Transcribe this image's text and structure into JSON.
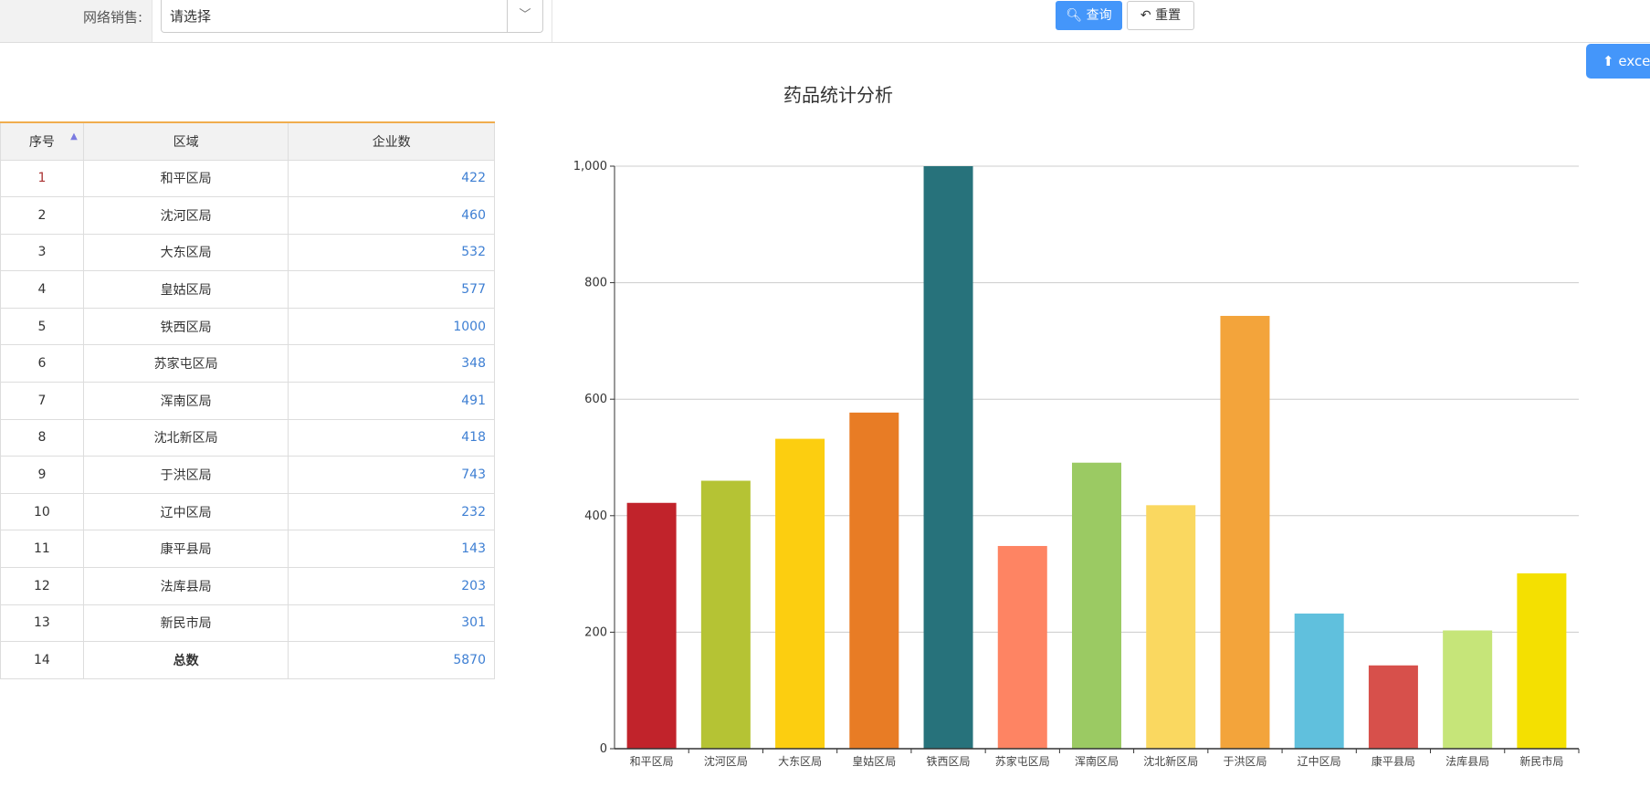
{
  "filter": {
    "label": "网络销售:",
    "select_value": "请选择"
  },
  "toolbar": {
    "query_label": "查询",
    "reset_label": "重置",
    "export_label": "excel"
  },
  "title": "药品统计分析",
  "table": {
    "headers": [
      "序号",
      "区域",
      "企业数"
    ],
    "rows": [
      [
        "1",
        "和平区局",
        "422"
      ],
      [
        "2",
        "沈河区局",
        "460"
      ],
      [
        "3",
        "大东区局",
        "532"
      ],
      [
        "4",
        "皇姑区局",
        "577"
      ],
      [
        "5",
        "铁西区局",
        "1000"
      ],
      [
        "6",
        "苏家屯区局",
        "348"
      ],
      [
        "7",
        "浑南区局",
        "491"
      ],
      [
        "8",
        "沈北新区局",
        "418"
      ],
      [
        "9",
        "于洪区局",
        "743"
      ],
      [
        "10",
        "辽中区局",
        "232"
      ],
      [
        "11",
        "康平县局",
        "143"
      ],
      [
        "12",
        "法库县局",
        "203"
      ],
      [
        "13",
        "新民市局",
        "301"
      ],
      [
        "14",
        "总数",
        "5870"
      ]
    ]
  },
  "chart_data": {
    "type": "bar",
    "title": "药品统计分析",
    "categories": [
      "和平区局",
      "沈河区局",
      "大东区局",
      "皇姑区局",
      "铁西区局",
      "苏家屯区局",
      "浑南区局",
      "沈北新区局",
      "于洪区局",
      "辽中区局",
      "康平县局",
      "法库县局",
      "新民市局"
    ],
    "values": [
      422,
      460,
      532,
      577,
      1000,
      348,
      491,
      418,
      743,
      232,
      143,
      203,
      301
    ],
    "colors": [
      "#c1232b",
      "#b5c334",
      "#fcce10",
      "#e87c25",
      "#27727b",
      "#fe8463",
      "#9bca63",
      "#fad860",
      "#f3a43b",
      "#60c0dd",
      "#d7504b",
      "#c6e579",
      "#f4e001"
    ],
    "ylim": [
      0,
      1000
    ],
    "yticks": [
      "0",
      "200",
      "400",
      "600",
      "800",
      "1,000"
    ],
    "grid": true
  }
}
